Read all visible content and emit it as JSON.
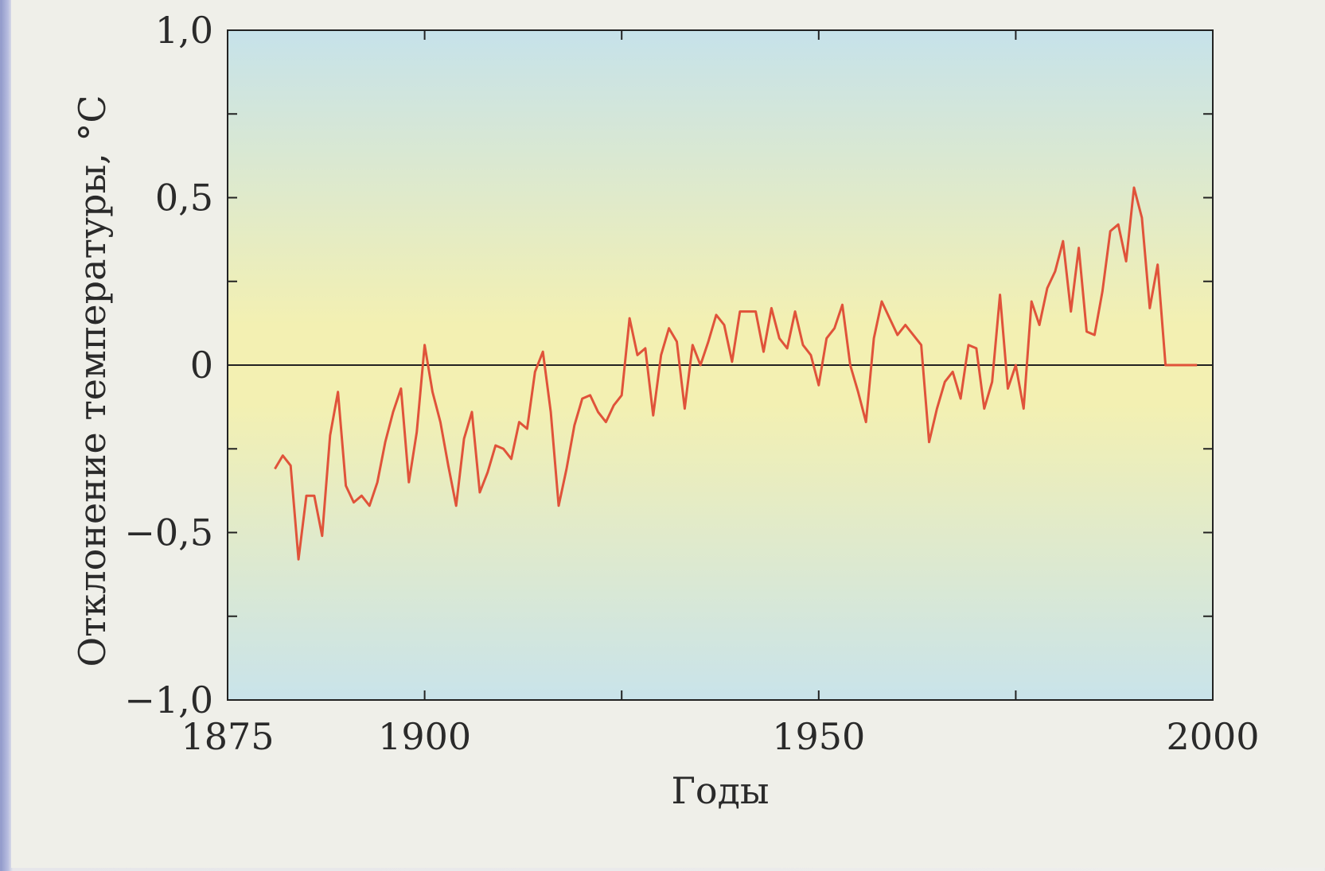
{
  "chart_data": {
    "type": "line",
    "xlabel": "Годы",
    "ylabel": "Отклонение температуры, °C",
    "xlim": [
      1875,
      2000
    ],
    "ylim": [
      -1.0,
      1.0
    ],
    "x_ticks": [
      1875,
      1900,
      1950,
      2000
    ],
    "x_tick_labels": [
      "1875",
      "1900",
      "1950",
      "2000"
    ],
    "y_ticks": [
      1.0,
      0.5,
      0,
      -0.5,
      -1.0
    ],
    "y_tick_labels": [
      "1,0",
      "0,5",
      "0",
      "−0,5",
      "−1,0"
    ],
    "reference_line": 0,
    "grid": false,
    "colors": {
      "line": "#e0533a",
      "background_top": "#c6e2ea",
      "background_middle": "#f3f0b2",
      "background_bottom": "#c9e3ea"
    },
    "series": [
      {
        "x": [
          1881,
          1882,
          1883,
          1884,
          1885,
          1886,
          1887,
          1888,
          1889,
          1890,
          1891,
          1892,
          1893,
          1894,
          1895,
          1896,
          1897,
          1898,
          1899,
          1900,
          1901,
          1902,
          1903,
          1904,
          1905,
          1906,
          1907,
          1908,
          1909,
          1910,
          1911,
          1912,
          1913,
          1914,
          1915,
          1916,
          1917,
          1918,
          1919,
          1920,
          1921,
          1922,
          1923,
          1924,
          1925,
          1926,
          1927,
          1928,
          1929,
          1930,
          1931,
          1932,
          1933,
          1934,
          1935,
          1936,
          1937,
          1938,
          1939,
          1940,
          1941,
          1942,
          1943,
          1944,
          1945,
          1946,
          1947,
          1948,
          1949,
          1950,
          1951,
          1952,
          1953,
          1954,
          1955,
          1956,
          1957,
          1958,
          1959,
          1960,
          1961,
          1962,
          1963,
          1964,
          1965,
          1966,
          1967,
          1968,
          1969,
          1970,
          1971,
          1972,
          1973,
          1974,
          1975,
          1976,
          1977,
          1978,
          1979,
          1980,
          1981,
          1982,
          1983,
          1984,
          1985,
          1986,
          1987,
          1988,
          1989,
          1990,
          1991,
          1992,
          1993,
          1994,
          1995,
          1996,
          1997,
          1998
        ],
        "values": [
          -0.31,
          -0.27,
          -0.3,
          -0.58,
          -0.39,
          -0.39,
          -0.51,
          -0.21,
          -0.08,
          -0.36,
          -0.41,
          -0.39,
          -0.42,
          -0.35,
          -0.23,
          -0.14,
          -0.07,
          -0.35,
          -0.2,
          0.06,
          -0.08,
          -0.17,
          -0.3,
          -0.42,
          -0.22,
          -0.14,
          -0.38,
          -0.32,
          -0.24,
          -0.25,
          -0.28,
          -0.17,
          -0.19,
          -0.02,
          0.04,
          -0.14,
          -0.42,
          -0.31,
          -0.18,
          -0.1,
          -0.09,
          -0.14,
          -0.17,
          -0.12,
          -0.09,
          0.14,
          0.03,
          0.05,
          -0.15,
          0.03,
          0.11,
          0.07,
          -0.13,
          0.06,
          0.0,
          0.07,
          0.15,
          0.12,
          0.01,
          0.16,
          0.16,
          0.16,
          0.04,
          0.17,
          0.08,
          0.05,
          0.16,
          0.06,
          0.03,
          -0.06,
          0.08,
          0.11,
          0.18,
          0.0,
          -0.08,
          -0.17,
          0.08,
          0.19,
          0.14,
          0.09,
          0.12,
          0.09,
          0.06,
          -0.23,
          -0.13,
          -0.05,
          -0.02,
          -0.1,
          0.06,
          0.05,
          -0.13,
          -0.05,
          0.21,
          -0.07,
          0.0,
          -0.13,
          0.19,
          0.12,
          0.23,
          0.28,
          0.37,
          0.16,
          0.35,
          0.1,
          0.09,
          0.22,
          0.4,
          0.42,
          0.31,
          0.53,
          0.44,
          0.17,
          0.3,
          0.0,
          0.0,
          0.0,
          0.0,
          0.0
        ]
      }
    ]
  }
}
